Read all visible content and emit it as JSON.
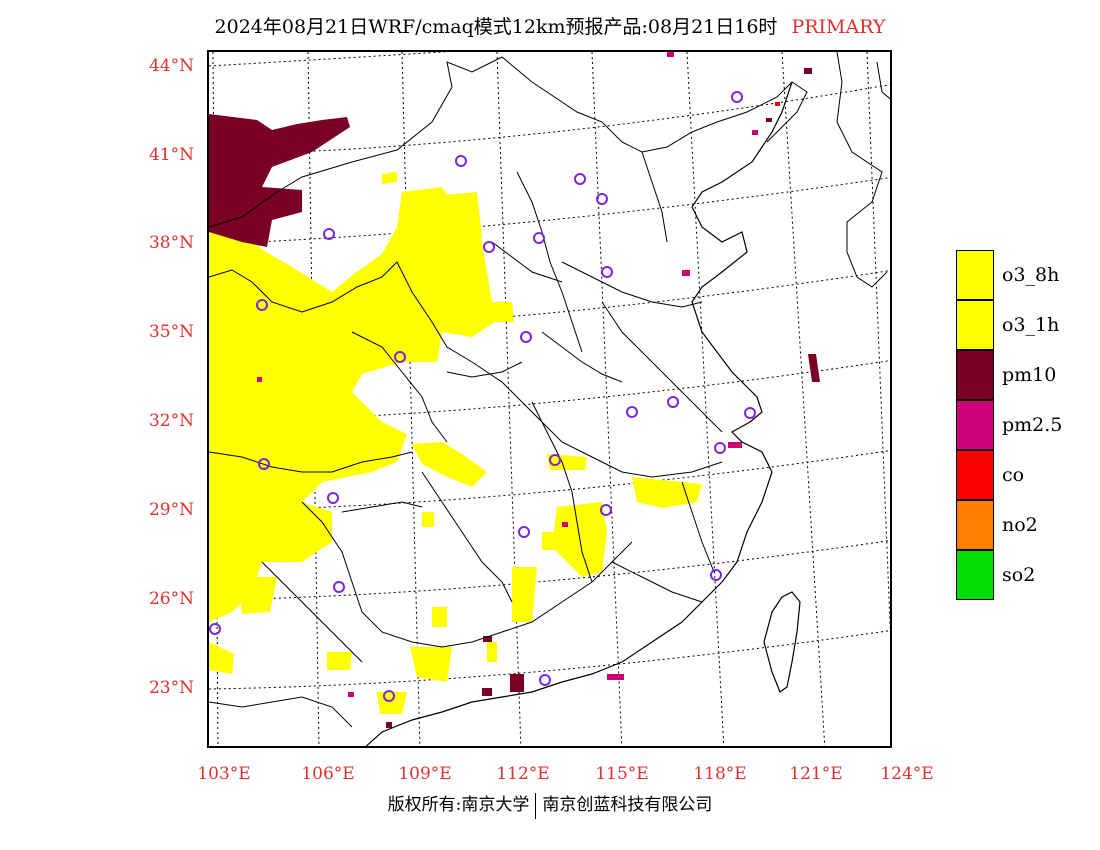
{
  "title": {
    "main": "2024年08月21日WRF/cmaq模式12km预报产品:08月21日16时",
    "tag": "PRIMARY"
  },
  "axes": {
    "lat_labels": [
      "44°N",
      "41°N",
      "38°N",
      "35°N",
      "32°N",
      "29°N",
      "26°N",
      "23°N"
    ],
    "lon_labels": [
      "103°E",
      "106°E",
      "109°E",
      "112°E",
      "115°E",
      "118°E",
      "121°E",
      "124°E"
    ]
  },
  "legend": [
    {
      "label": "o3_8h",
      "color": "#ffff00"
    },
    {
      "label": "o3_1h",
      "color": "#ffff00"
    },
    {
      "label": "pm10",
      "color": "#7a0026"
    },
    {
      "label": "pm2.5",
      "color": "#cc0077"
    },
    {
      "label": "co",
      "color": "#ff0000"
    },
    {
      "label": "no2",
      "color": "#ff7f00"
    },
    {
      "label": "so2",
      "color": "#00dd00"
    }
  ],
  "footer": {
    "left": "版权所有:南京大学",
    "right": "南京创蓝科技有限公司"
  }
}
